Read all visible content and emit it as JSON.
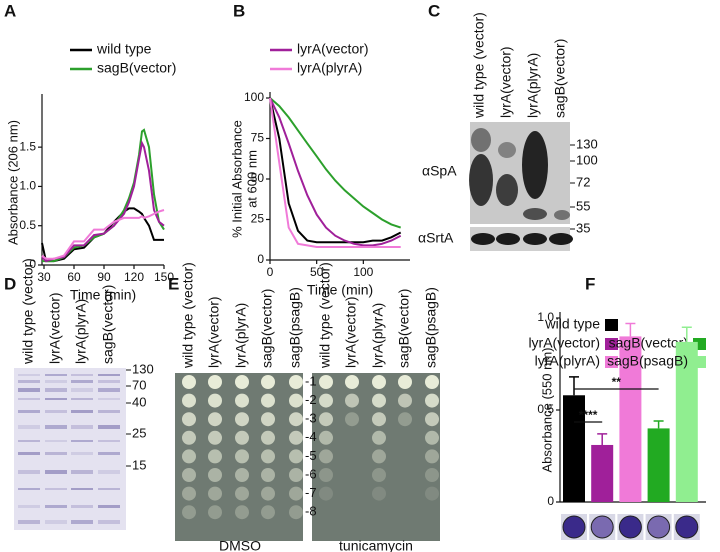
{
  "panel_labels": [
    "A",
    "B",
    "C",
    "D",
    "E",
    "F"
  ],
  "chart_data": [
    {
      "type": "line",
      "xlabel": "Time (min)",
      "ylabel": [
        "Absorbance (206 nm)"
      ],
      "x": [
        28,
        32,
        40,
        50,
        60,
        70,
        80,
        90,
        100,
        110,
        115,
        120,
        125,
        128,
        130,
        135,
        140,
        145,
        150
      ],
      "xlim": [
        28,
        150
      ],
      "xticks": [
        30,
        60,
        90,
        120,
        150
      ],
      "ylim": [
        0,
        2.1
      ],
      "yticks": [
        0,
        0.5,
        {
          "value": 1,
          "label": "1.0"
        },
        1.5
      ],
      "series": [
        {
          "name": "wild type",
          "color": "#000000",
          "values": [
            0.28,
            0.05,
            0.05,
            0.08,
            0.2,
            0.22,
            0.35,
            0.4,
            0.55,
            0.68,
            0.72,
            0.72,
            0.68,
            0.65,
            0.6,
            0.5,
            0.32,
            0.32,
            0.32
          ]
        },
        {
          "name": "sagB(vector)",
          "color": "#2ca02c",
          "values": [
            0.05,
            0.05,
            0.05,
            0.1,
            0.22,
            0.25,
            0.35,
            0.4,
            0.5,
            0.7,
            0.85,
            1.05,
            1.4,
            1.7,
            1.72,
            1.5,
            0.9,
            0.55,
            0.45
          ]
        },
        {
          "color": "#a0209a",
          "values": [
            0.1,
            0.05,
            0.08,
            0.1,
            0.25,
            0.25,
            0.38,
            0.4,
            0.5,
            0.65,
            0.8,
            1.0,
            1.35,
            1.55,
            1.5,
            1.2,
            0.7,
            0.55,
            0.5
          ]
        },
        {
          "color": "#f07ad8",
          "values": [
            0.12,
            0.08,
            0.08,
            0.12,
            0.3,
            0.3,
            0.45,
            0.45,
            0.55,
            0.6,
            0.6,
            0.6,
            0.6,
            0.62,
            0.6,
            0.62,
            0.65,
            0.68,
            0.7
          ]
        }
      ]
    },
    {
      "type": "line",
      "xlabel": "Time (min)",
      "ylabel": [
        "% Initial Absorbance",
        "at 600 nm"
      ],
      "x": [
        0,
        10,
        20,
        30,
        40,
        50,
        60,
        70,
        80,
        90,
        100,
        110,
        120,
        130,
        140
      ],
      "xlim": [
        0,
        150
      ],
      "xticks": [
        0,
        50,
        100
      ],
      "ylim": [
        0,
        100
      ],
      "yticks": [
        0,
        25,
        50,
        75,
        100
      ],
      "series": [
        {
          "color": "#000000",
          "values": [
            100,
            75,
            35,
            18,
            12,
            11,
            11,
            11,
            11,
            11,
            11,
            12,
            12,
            14,
            17
          ]
        },
        {
          "color": "#2ca02c",
          "values": [
            100,
            95,
            88,
            80,
            72,
            64,
            56,
            49,
            43,
            38,
            33,
            29,
            25,
            22,
            20
          ]
        },
        {
          "name": "lyrA(vector)",
          "color": "#a0209a",
          "values": [
            100,
            88,
            72,
            55,
            40,
            28,
            20,
            15,
            12,
            10,
            9,
            9,
            10,
            12,
            15
          ]
        },
        {
          "name": "lyrA(plyrA)",
          "color": "#f07ad8",
          "values": [
            100,
            60,
            20,
            10,
            9,
            8,
            8,
            8,
            8,
            8,
            8,
            8,
            8,
            8,
            8
          ]
        }
      ]
    },
    {
      "type": "bar",
      "ylabel": [
        "Absorbance (550 nm)"
      ],
      "ylim": [
        0,
        1
      ],
      "yticks": [
        0,
        0.5,
        {
          "value": 1,
          "label": "1.0"
        }
      ],
      "series": [
        {
          "name": "wild type",
          "color": "#000000",
          "values": [
            0.58
          ],
          "errors": [
            0.1
          ]
        },
        {
          "name": "lyrA(vector)",
          "color": "#a0209a",
          "values": [
            0.31
          ],
          "errors": [
            0.06
          ]
        },
        {
          "name": "lyrA(plyrA)",
          "color": "#f07ad8",
          "values": [
            0.9
          ],
          "errors": [
            0.07
          ]
        },
        {
          "name": "sagB(vector)",
          "color": "#22aa22",
          "values": [
            0.4
          ],
          "errors": [
            0.04
          ]
        },
        {
          "name": "sagB(psagB)",
          "color": "#90ee90",
          "values": [
            0.87
          ],
          "errors": [
            0.08
          ]
        }
      ],
      "annotations": [
        "****",
        "**"
      ]
    }
  ],
  "blot": {
    "lanes": [
      "wild type (vector)",
      "lyrA(vector)",
      "lyrA(plyrA)",
      "sagB(vector)"
    ],
    "antibodies": [
      "αSpA",
      "αSrtA"
    ],
    "markers": [
      130,
      100,
      72,
      55,
      35
    ]
  },
  "gel": {
    "lanes": [
      "wild type (vector)",
      "lyrA(vector)",
      "lyrA(plyrA)",
      "sagB(vector)"
    ],
    "markers": [
      130,
      70,
      40,
      25,
      15
    ]
  },
  "spot_assay": {
    "strains": [
      "wild type (vector)",
      "lyrA(vector)",
      "lyrA(plyrA)",
      "sagB(vector)",
      "sagB(psagB)"
    ],
    "dilutions": [
      "-1",
      "-2",
      "-3",
      "-4",
      "-5",
      "-6",
      "-7",
      "-8"
    ],
    "conditions": [
      "DMSO",
      "tunicamycin"
    ]
  }
}
